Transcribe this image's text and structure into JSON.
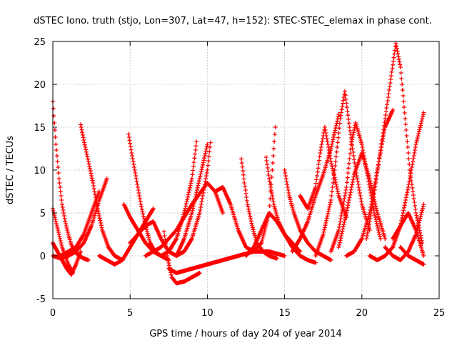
{
  "chart_data": {
    "type": "scatter",
    "title": "dSTEC Iono. truth (stjo, Lon=307, Lat=47, h=152): STEC-STEC_elemax in phase cont.",
    "xlabel": "GPS time / hours of day 204 of year 2014",
    "ylabel": "dSTEC  / TECUs",
    "xlim": [
      0,
      25
    ],
    "ylim": [
      -5,
      25
    ],
    "xticks": [
      "0",
      "5",
      "10",
      "15",
      "20",
      "25"
    ],
    "yticks": [
      "-5",
      "0",
      "5",
      "10",
      "15",
      "20",
      "25"
    ],
    "xtick_values": [
      0,
      5,
      10,
      15,
      20,
      25
    ],
    "ytick_values": [
      -5,
      0,
      5,
      10,
      15,
      20,
      25
    ],
    "grid": true,
    "legend": "none",
    "marker": "+",
    "color": "#ff0000",
    "series": [
      {
        "x": [
          0.0,
          0.2,
          0.4,
          0.6,
          0.8,
          1.0,
          1.2,
          1.4,
          1.7,
          2.0,
          2.3
        ],
        "y": [
          18.0,
          13.0,
          9.0,
          6.0,
          4.0,
          2.5,
          1.3,
          0.5,
          0.0,
          -0.3,
          -0.5
        ]
      },
      {
        "x": [
          0.0,
          0.2,
          0.4,
          0.6,
          0.8,
          1.0,
          1.3
        ],
        "y": [
          5.5,
          4.0,
          2.5,
          1.0,
          0.0,
          -1.0,
          -2.0
        ]
      },
      {
        "x": [
          0.0,
          0.3,
          0.6,
          0.9,
          1.2,
          1.5,
          1.8
        ],
        "y": [
          1.5,
          0.5,
          -0.5,
          -1.5,
          -2.2,
          -1.0,
          0.5
        ]
      },
      {
        "x": [
          0.0,
          0.5,
          1.0,
          1.5,
          2.0,
          2.5,
          3.0,
          3.5
        ],
        "y": [
          0.0,
          -0.3,
          0.0,
          0.5,
          1.5,
          3.5,
          6.5,
          9.0
        ]
      },
      {
        "x": [
          1.8,
          2.0,
          2.3,
          2.6,
          2.9,
          3.2,
          3.6,
          4.0,
          4.5
        ],
        "y": [
          15.3,
          13.5,
          11.0,
          8.5,
          5.5,
          3.0,
          1.0,
          0.0,
          -0.5
        ]
      },
      {
        "x": [
          0.5,
          1.0,
          1.5,
          2.0,
          2.5,
          3.0
        ],
        "y": [
          0.0,
          0.5,
          1.0,
          2.5,
          5.0,
          7.5
        ]
      },
      {
        "x": [
          3.0,
          3.5,
          4.0,
          4.5,
          5.0,
          5.5,
          6.0,
          6.5
        ],
        "y": [
          0.0,
          -0.5,
          -1.0,
          -0.5,
          1.0,
          2.5,
          4.0,
          5.5
        ]
      },
      {
        "x": [
          4.9,
          5.1,
          5.4,
          5.7,
          6.0,
          6.3,
          6.6,
          7.0,
          7.5
        ],
        "y": [
          14.2,
          12.0,
          9.0,
          6.0,
          3.5,
          1.5,
          0.5,
          0.0,
          -0.5
        ]
      },
      {
        "x": [
          4.6,
          5.0,
          5.5,
          6.0,
          6.5,
          7.0,
          7.5,
          8.0,
          8.5,
          9.0,
          9.3
        ],
        "y": [
          6.0,
          4.5,
          3.0,
          1.5,
          0.5,
          0.0,
          0.5,
          2.0,
          5.0,
          9.0,
          13.3
        ]
      },
      {
        "x": [
          5.0,
          5.5,
          6.0,
          6.5,
          7.0,
          7.5,
          8.0,
          8.5,
          9.0,
          9.5,
          10.0,
          10.2
        ],
        "y": [
          1.5,
          2.5,
          3.5,
          4.0,
          2.0,
          0.5,
          0.0,
          0.5,
          2.0,
          5.0,
          10.0,
          13.2
        ]
      },
      {
        "x": [
          7.2,
          7.4,
          7.7,
          8.0,
          8.5,
          9.0,
          9.5
        ],
        "y": [
          2.8,
          0.0,
          -2.5,
          -3.2,
          -3.0,
          -2.5,
          -2.0
        ]
      },
      {
        "x": [
          7.5,
          8.0,
          9.0,
          10.0,
          11.0,
          12.0,
          13.0,
          14.0,
          15.0
        ],
        "y": [
          -1.5,
          -2.0,
          -1.5,
          -1.0,
          -0.5,
          0.0,
          0.5,
          0.5,
          0.0
        ]
      },
      {
        "x": [
          6.0,
          7.0,
          8.0,
          9.0,
          10.0,
          10.5,
          11.0
        ],
        "y": [
          0.0,
          1.0,
          3.0,
          6.0,
          8.5,
          7.5,
          5.0
        ]
      },
      {
        "x": [
          8.0,
          8.5,
          9.0,
          9.5,
          10.0
        ],
        "y": [
          0.0,
          2.0,
          5.0,
          9.0,
          13.0
        ]
      },
      {
        "x": [
          10.5,
          11.0,
          11.5,
          12.0,
          12.5,
          13.0,
          13.5,
          14.0,
          14.4
        ],
        "y": [
          7.5,
          8.0,
          6.0,
          3.0,
          1.0,
          0.5,
          1.5,
          5.0,
          15.0
        ]
      },
      {
        "x": [
          12.2,
          12.4,
          12.6,
          12.9,
          13.2,
          13.6,
          14.0,
          14.5
        ],
        "y": [
          11.3,
          8.5,
          6.0,
          3.5,
          1.5,
          0.5,
          0.0,
          -0.3
        ]
      },
      {
        "x": [
          12.5,
          13.0,
          13.5,
          14.0,
          14.5,
          15.0,
          15.5,
          16.0
        ],
        "y": [
          0.0,
          1.0,
          3.0,
          5.0,
          4.0,
          2.5,
          1.5,
          0.5
        ]
      },
      {
        "x": [
          13.8,
          14.0,
          14.3,
          14.6,
          15.0,
          15.5,
          16.0,
          16.5,
          17.0
        ],
        "y": [
          11.5,
          9.0,
          6.0,
          4.0,
          2.5,
          1.0,
          0.0,
          -0.5,
          -0.8
        ]
      },
      {
        "x": [
          15.0,
          15.3,
          15.6,
          16.0,
          16.5,
          17.0,
          17.5,
          18.0
        ],
        "y": [
          10.0,
          7.0,
          5.0,
          3.0,
          1.5,
          0.5,
          0.0,
          -0.5
        ]
      },
      {
        "x": [
          15.5,
          16.0,
          16.5,
          17.0,
          17.5,
          18.0,
          18.5
        ],
        "y": [
          0.5,
          2.0,
          4.0,
          7.0,
          9.5,
          12.5,
          16.5
        ]
      },
      {
        "x": [
          16.0,
          16.5,
          17.0,
          17.3,
          17.6,
          18.0,
          18.5,
          19.0
        ],
        "y": [
          7.0,
          5.5,
          8.0,
          12.0,
          15.0,
          11.0,
          7.0,
          4.5
        ]
      },
      {
        "x": [
          17.0,
          17.5,
          18.0,
          18.3,
          18.6,
          18.9,
          19.2,
          19.6,
          20.0,
          20.5
        ],
        "y": [
          0.0,
          2.5,
          6.5,
          11.0,
          16.0,
          19.2,
          15.0,
          10.0,
          6.0,
          3.0
        ]
      },
      {
        "x": [
          18.0,
          18.5,
          19.0,
          19.3,
          19.6,
          20.0,
          20.4,
          20.8,
          21.2
        ],
        "y": [
          0.5,
          3.0,
          8.0,
          13.0,
          15.5,
          13.0,
          9.0,
          5.0,
          2.0
        ]
      },
      {
        "x": [
          18.5,
          19.0,
          19.5,
          20.0,
          20.5,
          21.0,
          21.5
        ],
        "y": [
          1.0,
          5.0,
          9.5,
          12.0,
          9.0,
          5.0,
          2.0
        ]
      },
      {
        "x": [
          19.0,
          19.5,
          20.0,
          20.5,
          21.0,
          21.5,
          22.0
        ],
        "y": [
          0.0,
          0.5,
          2.0,
          5.0,
          10.0,
          15.0,
          17.0
        ]
      },
      {
        "x": [
          20.3,
          20.7,
          21.1,
          21.5,
          21.9,
          22.2,
          22.5,
          22.8,
          23.1,
          23.5,
          23.9
        ],
        "y": [
          2.0,
          6.0,
          11.0,
          16.0,
          21.0,
          24.8,
          22.0,
          16.0,
          10.0,
          5.0,
          1.5
        ]
      },
      {
        "x": [
          20.5,
          21.0,
          21.5,
          22.0,
          22.5,
          23.0,
          23.5,
          24.0
        ],
        "y": [
          0.0,
          -0.5,
          0.0,
          1.0,
          3.5,
          8.0,
          13.0,
          16.7
        ]
      },
      {
        "x": [
          21.5,
          22.0,
          22.5,
          23.0,
          23.5,
          24.0
        ],
        "y": [
          1.0,
          0.0,
          -0.5,
          0.5,
          2.5,
          6.0
        ]
      },
      {
        "x": [
          22.0,
          22.5,
          23.0,
          23.5,
          24.0
        ],
        "y": [
          2.0,
          3.5,
          5.0,
          3.0,
          0.0
        ]
      },
      {
        "x": [
          22.5,
          23.0,
          23.5,
          24.0
        ],
        "y": [
          1.0,
          0.0,
          -0.5,
          -1.0
        ]
      }
    ]
  }
}
